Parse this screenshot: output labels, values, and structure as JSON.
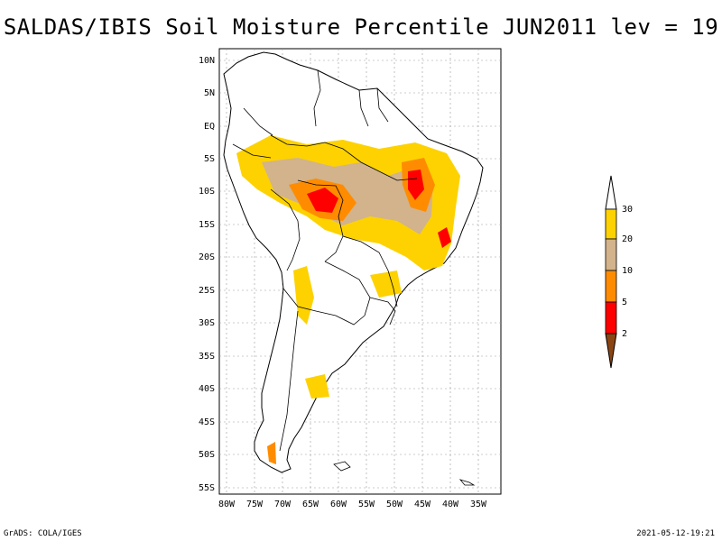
{
  "title": "SALDAS/IBIS Soil Moisture Percentile JUN2011 lev = 19",
  "footer": {
    "left": "GrADS: COLA/IGES",
    "right": "2021-05-12-19:21"
  },
  "axes": {
    "lat_labels": [
      "10N",
      "5N",
      "EQ",
      "5S",
      "10S",
      "15S",
      "20S",
      "25S",
      "30S",
      "35S",
      "40S",
      "45S",
      "50S",
      "55S"
    ],
    "lon_labels": [
      "80W",
      "75W",
      "70W",
      "65W",
      "60W",
      "55W",
      "50W",
      "45W",
      "40W",
      "35W"
    ]
  },
  "legend": {
    "labels": [
      "30",
      "20",
      "10",
      "5",
      "2"
    ],
    "colors": [
      "#fdd200",
      "#d2b38c",
      "#ff8c00",
      "#ff0000",
      "#8b4513"
    ]
  },
  "colors": {
    "land": "#ffffff",
    "border": "#000000",
    "grid": "#999999"
  }
}
